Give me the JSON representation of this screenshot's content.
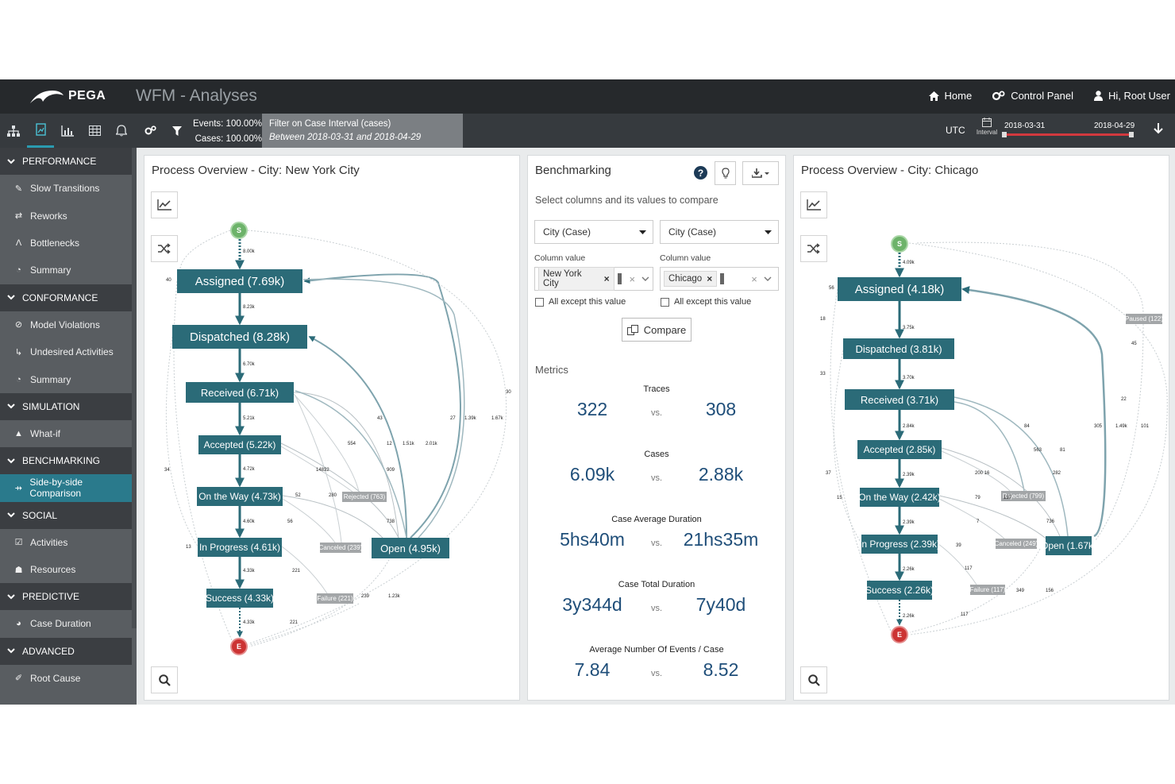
{
  "app": {
    "logo_text": "PEGA",
    "title": "WFM - Analyses"
  },
  "top_nav": {
    "home": "Home",
    "control_panel": "Control Panel",
    "user": "Hi, Root User"
  },
  "toolbar": {
    "events_label": "Events: 100.00%",
    "cases_label": "Cases: 100.00%",
    "filter_title": "Filter on Case Interval (cases)",
    "filter_detail": "Between 2018-03-31 and 2018-04-29",
    "timezone": "UTC",
    "interval_label": "Interval",
    "date_start": "2018-03-31",
    "date_end": "2018-04-29",
    "accent_color": "#2a9bb0",
    "range_color": "#d2393e"
  },
  "sidebar": {
    "sections": [
      {
        "label": "PERFORMANCE",
        "items": [
          "Slow Transitions",
          "Reworks",
          "Bottlenecks",
          "Summary"
        ]
      },
      {
        "label": "CONFORMANCE",
        "items": [
          "Model Violations",
          "Undesired Activities",
          "Summary"
        ]
      },
      {
        "label": "SIMULATION",
        "items": [
          "What-if"
        ]
      },
      {
        "label": "BENCHMARKING",
        "items": [
          "Side-by-side Comparison"
        ]
      },
      {
        "label": "SOCIAL",
        "items": [
          "Activities",
          "Resources"
        ]
      },
      {
        "label": "PREDICTIVE",
        "items": [
          "Case Duration"
        ]
      },
      {
        "label": "ADVANCED",
        "items": [
          "Root Cause"
        ]
      }
    ],
    "active_item": "Side-by-side Comparison",
    "active_color": "#2a7a8c"
  },
  "left_panel": {
    "title": "Process Overview - City: New York City",
    "start": "S",
    "end": "E",
    "nodes": {
      "assigned": "Assigned  (7.69k)",
      "dispatched": "Dispatched  (8.28k)",
      "received": "Received  (6.71k)",
      "accepted": "Accepted  (5.22k)",
      "onway": "On the Way  (4.73k)",
      "inprogress": "In Progress  (4.61k)",
      "open": "Open  (4.95k)",
      "success": "Success  (4.33k)",
      "rejected": "Rejected  (763)",
      "canceled": "Canceled  (239)",
      "failure": "Failure  (221)"
    },
    "edge_labels": [
      "8.00k",
      "40",
      "8.23k",
      "6.70k",
      "5.21k",
      "4.72k",
      "4.60k",
      "4.33k",
      "4.33k",
      "34",
      "13",
      "30",
      "27",
      "1.39k",
      "1.67k",
      "43",
      "554",
      "12",
      "1.51k",
      "2.01k",
      "14832",
      "909",
      "52",
      "280",
      "56",
      "738",
      "221",
      "239",
      "1.23k",
      "221"
    ]
  },
  "right_panel": {
    "title": "Process Overview - City: Chicago",
    "start": "S",
    "end": "E",
    "nodes": {
      "assigned": "Assigned  (4.18k)",
      "dispatched": "Dispatched  (3.81k)",
      "received": "Received  (3.71k)",
      "accepted": "Accepted  (2.85k)",
      "onway": "On the Way  (2.42k)",
      "inprogress": "In Progress  (2.39k)",
      "open": "Open  (1.67k)",
      "success": "Success  (2.26k)",
      "rejected": "Rejected  (799)",
      "canceled": "Canceled  (249)",
      "failure": "Failure  (117)",
      "paused": "Paused  (122)"
    },
    "edge_labels": [
      "4.09k",
      "56",
      "18",
      "3.75k",
      "33",
      "3.70k",
      "2.84k",
      "2.39k",
      "2.39k",
      "2.26k",
      "2.26k",
      "45",
      "22",
      "305",
      "1.49k",
      "101",
      "84",
      "563",
      "81",
      "200 16",
      "282",
      "79",
      "137",
      "736",
      "7",
      "39",
      "117",
      "37",
      "15",
      "349",
      "156",
      "117"
    ]
  },
  "benchmarking": {
    "title": "Benchmarking",
    "subtitle": "Select columns and its values to compare",
    "col1": {
      "dropdown": "City (Case)",
      "value_label": "Column value",
      "tag": "New York City",
      "except": "All except this value"
    },
    "col2": {
      "dropdown": "City (Case)",
      "value_label": "Column value",
      "tag": "Chicago",
      "except": "All except this value"
    },
    "compare_label": "Compare",
    "metrics_label": "Metrics",
    "vs_label": "vs.",
    "metrics": [
      {
        "name": "Traces",
        "left": "322",
        "right": "308"
      },
      {
        "name": "Cases",
        "left": "6.09k",
        "right": "2.88k"
      },
      {
        "name": "Case Average Duration",
        "left": "5hs40m",
        "right": "21hs35m"
      },
      {
        "name": "Case Total Duration",
        "left": "3y344d",
        "right": "7y40d"
      },
      {
        "name": "Average Number Of Events / Case",
        "left": "7.84",
        "right": "8.52"
      }
    ]
  }
}
